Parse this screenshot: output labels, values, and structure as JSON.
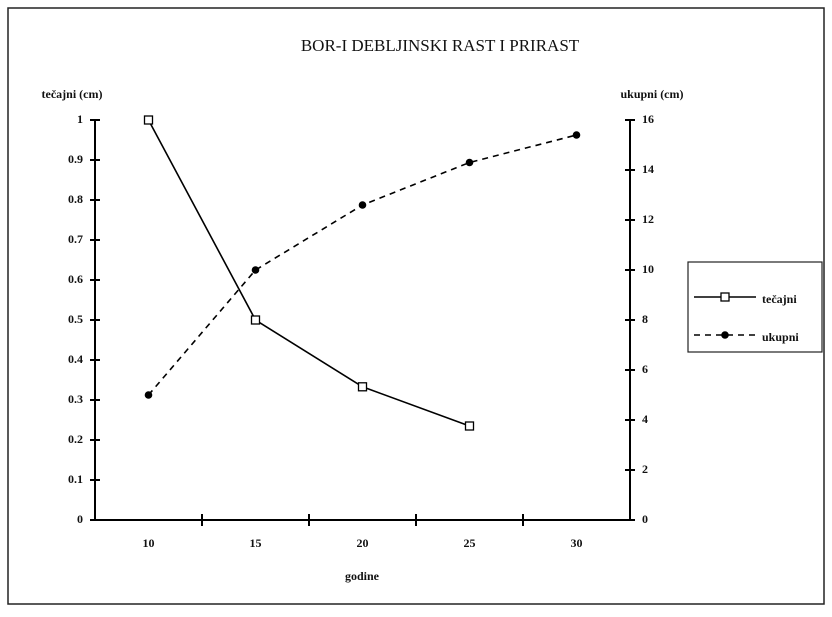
{
  "chart_data": {
    "type": "line",
    "title": "BOR-I  DEBLJINSKI RAST I PRIRAST",
    "x_label": "godine",
    "y_label": "tečajni (cm)",
    "y2_label": "ukupni (cm)",
    "categories": [
      "10",
      "15",
      "20",
      "25",
      "30"
    ],
    "series": [
      {
        "name": "tečajni",
        "color": "#000000",
        "marker": "square",
        "dash": "solid",
        "values": [
          1,
          0.5,
          0.333,
          0.235,
          null
        ]
      },
      {
        "name": "ukupni",
        "color": "#000000",
        "marker": "circle",
        "dash": "dashed",
        "axis": "y2",
        "values": [
          5,
          10,
          12.6,
          14.3,
          15.4
        ]
      }
    ],
    "ylim": [
      0,
      1
    ],
    "yticks": [
      0,
      0.1,
      0.2,
      0.3,
      0.4,
      0.5,
      0.6,
      0.7,
      0.8,
      0.9,
      1
    ],
    "y2lim": [
      0,
      16
    ],
    "y2ticks": [
      0,
      2,
      4,
      6,
      8,
      10,
      12,
      14,
      16
    ],
    "grid": false,
    "legend": "right"
  }
}
